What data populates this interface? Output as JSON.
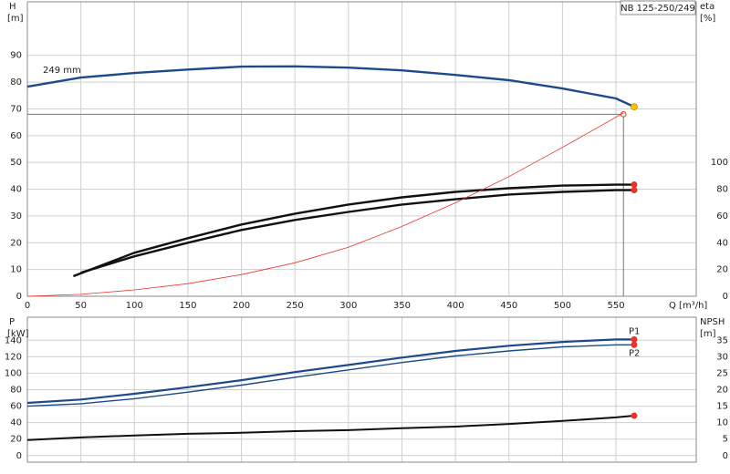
{
  "chart_data": [
    {
      "type": "line",
      "title": "NB 125-250/249",
      "y_label": "H",
      "y_unit": "[m]",
      "y2_label": "eta",
      "y2_unit": "[%]",
      "x_label": "Q [m³/h]",
      "annotation": "249 mm",
      "xlim": [
        0,
        625
      ],
      "xticks": [
        0,
        50,
        100,
        150,
        200,
        250,
        300,
        350,
        400,
        450,
        500,
        550
      ],
      "ylim": [
        0,
        110
      ],
      "yticks": [
        0,
        10,
        20,
        30,
        40,
        50,
        60,
        70,
        80,
        90
      ],
      "y2lim": [
        0,
        220
      ],
      "y2ticks": [
        0,
        20,
        40,
        60,
        80,
        100
      ],
      "grid": true,
      "duty_point": {
        "x": 557,
        "y": 68,
        "color": "#e8342a"
      },
      "series": [
        {
          "color": "#1c4a8a",
          "marker_color": "#f5c400",
          "width": 2.4,
          "x": [
            0,
            50,
            100,
            150,
            200,
            250,
            300,
            350,
            400,
            450,
            500,
            550,
            567
          ],
          "values": [
            78.3,
            81.7,
            83.4,
            84.7,
            85.8,
            85.9,
            85.4,
            84.4,
            82.7,
            80.7,
            77.6,
            73.9,
            70.8
          ]
        },
        {
          "color": "#111111",
          "marker_color": "#e8342a",
          "width": 2.4,
          "axis": "y2",
          "x": [
            43,
            100,
            150,
            200,
            250,
            300,
            350,
            400,
            450,
            500,
            550,
            567
          ],
          "values": [
            15,
            32.5,
            43.4,
            53.6,
            61.7,
            68.5,
            73.9,
            78,
            80.7,
            82.7,
            83.4,
            83.4
          ]
        },
        {
          "color": "#111111",
          "marker_color": "#e8342a",
          "width": 2.4,
          "axis": "y2",
          "x": [
            50,
            100,
            150,
            200,
            250,
            300,
            350,
            400,
            450,
            500,
            550,
            567
          ],
          "values": [
            17.6,
            29.8,
            40,
            49.5,
            57,
            63,
            68.5,
            72.5,
            76,
            78,
            79.3,
            79.3
          ]
        },
        {
          "color": "#e8342a",
          "width": 0.8,
          "x": [
            0,
            50,
            100,
            150,
            200,
            250,
            300,
            350,
            400,
            450,
            500,
            557
          ],
          "values": [
            0,
            0.7,
            2.4,
            4.7,
            8.1,
            12.5,
            18.3,
            26.1,
            34.9,
            44.7,
            55.6,
            68.5
          ]
        }
      ]
    },
    {
      "type": "line",
      "y_label": "P",
      "y_unit": "[kW]",
      "y2_label": "NPSH",
      "y2_unit": "[m]",
      "xlim": [
        0,
        625
      ],
      "xticks": [
        0,
        50,
        100,
        150,
        200,
        250,
        300,
        350,
        400,
        450,
        500,
        550
      ],
      "ylim": [
        -8,
        168
      ],
      "yticks": [
        0,
        20,
        40,
        60,
        80,
        100,
        120,
        140
      ],
      "y2lim": [
        -2,
        42
      ],
      "y2ticks": [
        0,
        5,
        10,
        15,
        20,
        25,
        30,
        35
      ],
      "grid": true,
      "series": [
        {
          "name": "P1",
          "color": "#1c4a8a",
          "marker_color": "#e8342a",
          "width": 2.2,
          "x": [
            0,
            50,
            100,
            150,
            200,
            250,
            300,
            350,
            400,
            450,
            500,
            550,
            567
          ],
          "values": [
            64,
            68,
            75,
            83,
            91.5,
            101.4,
            110,
            119,
            127,
            133.4,
            138,
            141,
            141
          ]
        },
        {
          "name": "P2",
          "color": "#1c4a8a",
          "marker_color": "#e8342a",
          "width": 1.4,
          "x": [
            0,
            50,
            100,
            150,
            200,
            250,
            300,
            350,
            400,
            450,
            500,
            550,
            567
          ],
          "values": [
            60,
            63,
            69,
            77,
            85.5,
            95,
            104,
            113,
            121,
            127,
            132,
            134.5,
            134.5
          ]
        },
        {
          "color": "#111111",
          "marker_color": "#e8342a",
          "width": 2,
          "axis": "y2",
          "x": [
            0,
            50,
            100,
            150,
            200,
            250,
            300,
            350,
            400,
            450,
            500,
            550,
            567
          ],
          "values": [
            4.7,
            5.5,
            6.1,
            6.6,
            6.9,
            7.4,
            7.7,
            8.3,
            8.8,
            9.6,
            10.5,
            11.6,
            12.1
          ]
        }
      ]
    }
  ]
}
